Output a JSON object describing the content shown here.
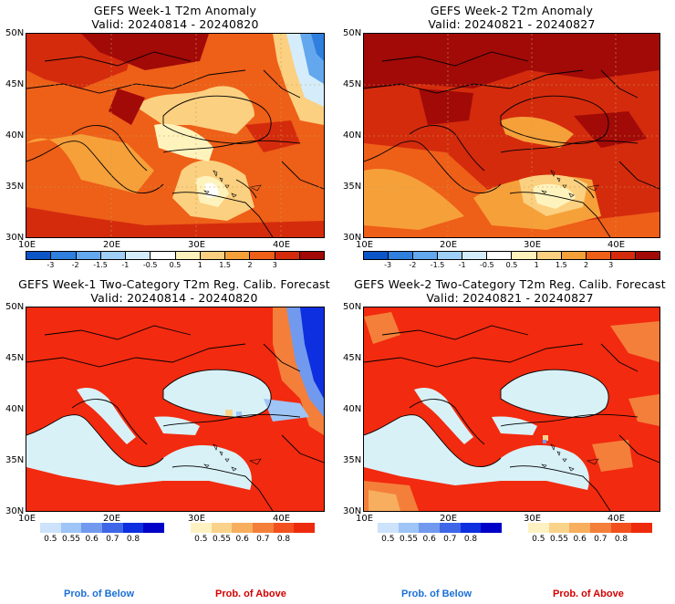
{
  "colors": {
    "below": "#1a6fd6",
    "above": "#d40000",
    "sea": "#d8f1f7",
    "land_above": "#f22a0f"
  },
  "anomaly_scale": {
    "ticks": [
      "-3",
      "-2",
      "-1.5",
      "-1",
      "-0.5",
      "0.5",
      "1",
      "1.5",
      "2",
      "3"
    ],
    "colors": [
      "#0a55c8",
      "#2f7fdf",
      "#63a8ee",
      "#9fcff7",
      "#d5edfb",
      "#ffffff",
      "#fff3bd",
      "#fbd080",
      "#f6a03a",
      "#ee5f18",
      "#d42b0d",
      "#a10a07"
    ]
  },
  "prob_scale": {
    "ticks": [
      "0.5",
      "0.55",
      "0.6",
      "0.7",
      "0.8"
    ],
    "below_colors": [
      "#cde2fb",
      "#9fc4f6",
      "#7199ee",
      "#3f66e6",
      "#0d2fe0",
      "#0000c8"
    ],
    "above_colors": [
      "#fff2c2",
      "#fad38b",
      "#f7ae5f",
      "#f47f3a",
      "#f2501f",
      "#ee2a0c"
    ]
  },
  "panels": {
    "top_left": {
      "title": "GEFS Week-1 T2m Anomaly",
      "valid": "Valid: 20240814 - 20240820"
    },
    "top_right": {
      "title": "GEFS Week-2 T2m Anomaly",
      "valid": "Valid: 20240821 - 20240827"
    },
    "bottom_left": {
      "title": "GEFS Week-1 Two-Category T2m Reg. Calib. Forecast",
      "valid": "Valid: 20240814 - 20240820"
    },
    "bottom_right": {
      "title": "GEFS Week-2 Two-Category T2m Reg. Calib. Forecast",
      "valid": "Valid: 20240821 - 20240827"
    }
  },
  "axes": {
    "lat_labels": [
      "50N",
      "45N",
      "40N",
      "35N",
      "30N"
    ],
    "lon_labels": [
      "10E",
      "20E",
      "30E",
      "40E"
    ]
  },
  "legend_labels": {
    "below": "Prob. of Below",
    "above": "Prob. of Above"
  }
}
